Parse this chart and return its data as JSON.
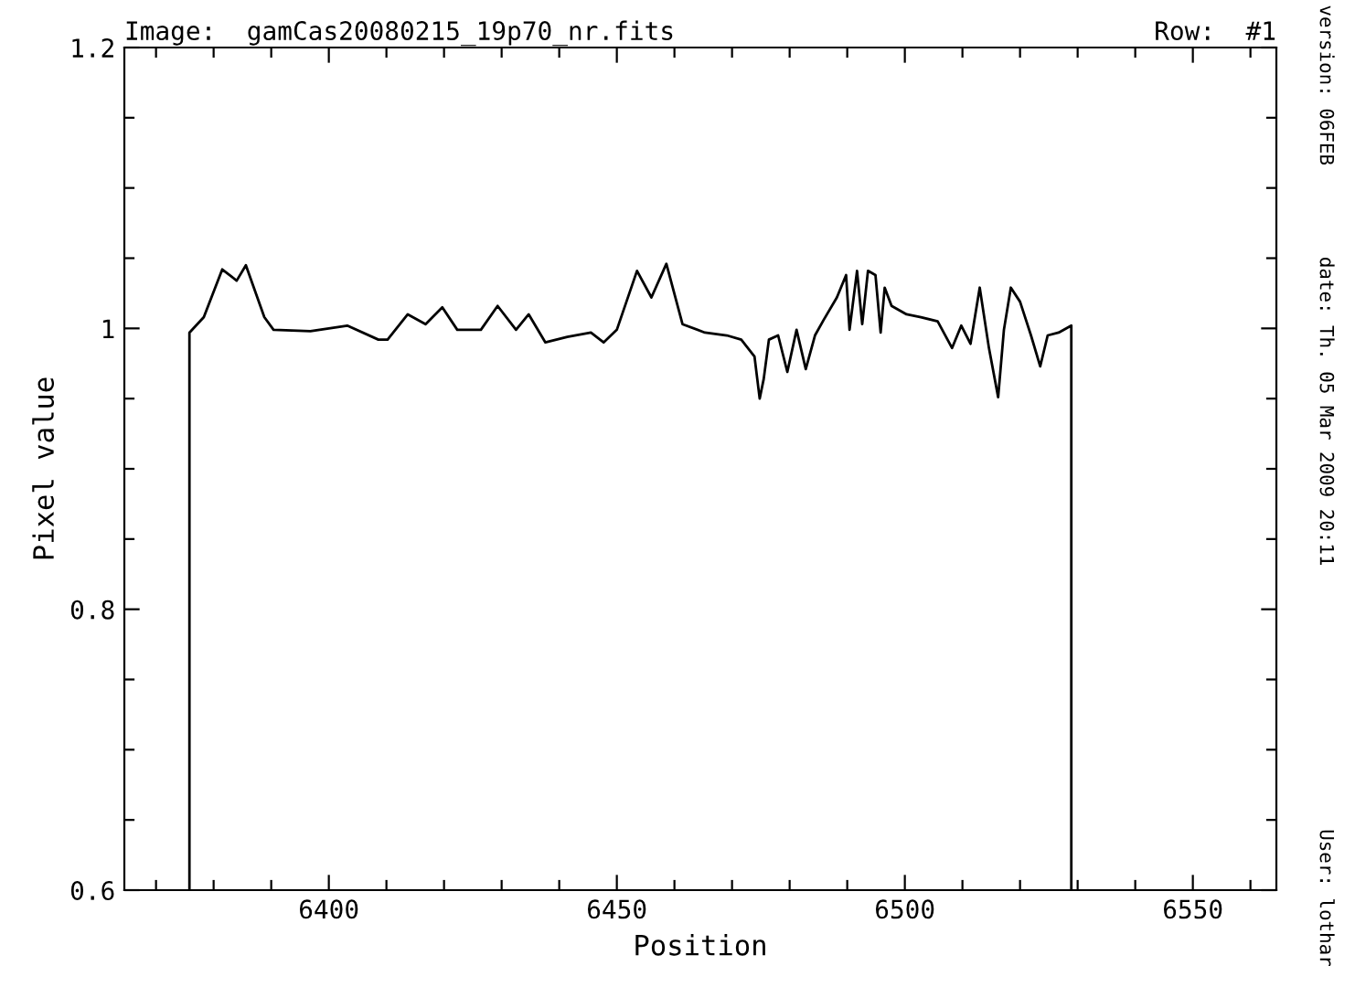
{
  "chart_data": {
    "type": "line",
    "title": "Image:  gamCas20080215_19p70_nr.fits",
    "subtitle": "Row:  #1",
    "xlabel": "Position",
    "ylabel": "Pixel value",
    "annotations": [
      "version: 06FEB",
      "date: Th. 05 Mar 2009 20:11",
      "User: lothar"
    ],
    "x": [
      6375.8,
      6375.8,
      6378.3,
      6381.5,
      6384.0,
      6385.6,
      6388.8,
      6390.4,
      6396.8,
      6403.2,
      6408.6,
      6410.2,
      6413.7,
      6416.8,
      6419.7,
      6422.3,
      6426.4,
      6429.3,
      6432.5,
      6434.7,
      6437.6,
      6441.4,
      6445.5,
      6447.7,
      6450.0,
      6453.5,
      6456.0,
      6458.6,
      6461.4,
      6465.3,
      6469.1,
      6471.6,
      6473.9,
      6474.8,
      6475.5,
      6476.4,
      6478.0,
      6479.6,
      6481.2,
      6482.8,
      6484.4,
      6485.9,
      6488.2,
      6489.8,
      6490.4,
      6491.7,
      6492.6,
      6493.6,
      6494.9,
      6495.8,
      6496.5,
      6497.7,
      6500.3,
      6502.8,
      6505.7,
      6508.2,
      6509.8,
      6511.4,
      6513.0,
      6514.6,
      6516.2,
      6517.2,
      6518.4,
      6520.0,
      6521.9,
      6523.5,
      6524.8,
      6526.7,
      6528.9,
      6528.9
    ],
    "series": [
      {
        "color": "#000000",
        "values": [
          0.6,
          0.997,
          1.008,
          1.042,
          1.034,
          1.045,
          1.008,
          0.999,
          0.998,
          1.002,
          0.992,
          0.992,
          1.01,
          1.003,
          1.015,
          0.999,
          0.999,
          1.016,
          0.999,
          1.01,
          0.99,
          0.994,
          0.997,
          0.99,
          0.999,
          1.041,
          1.022,
          1.046,
          1.003,
          0.997,
          0.995,
          0.992,
          0.98,
          0.95,
          0.964,
          0.992,
          0.995,
          0.969,
          0.999,
          0.971,
          0.995,
          1.006,
          1.022,
          1.038,
          0.999,
          1.041,
          1.003,
          1.041,
          1.038,
          0.997,
          1.029,
          1.016,
          1.01,
          1.008,
          1.005,
          0.986,
          1.002,
          0.989,
          1.029,
          0.986,
          0.951,
          0.999,
          1.029,
          1.019,
          0.995,
          0.973,
          0.995,
          0.997,
          1.002,
          0.6
        ]
      }
    ],
    "xlim": [
      6364.5,
      6564.5
    ],
    "xticks": [
      {
        "value": 6370,
        "label": null
      },
      {
        "value": 6380,
        "label": null
      },
      {
        "value": 6390,
        "label": null
      },
      6400,
      {
        "value": 6410,
        "label": null
      },
      {
        "value": 6420,
        "label": null
      },
      {
        "value": 6430,
        "label": null
      },
      {
        "value": 6440,
        "label": null
      },
      6450,
      {
        "value": 6460,
        "label": null
      },
      {
        "value": 6470,
        "label": null
      },
      {
        "value": 6480,
        "label": null
      },
      {
        "value": 6490,
        "label": null
      },
      6500,
      {
        "value": 6510,
        "label": null
      },
      {
        "value": 6520,
        "label": null
      },
      {
        "value": 6530,
        "label": null
      },
      {
        "value": 6540,
        "label": null
      },
      6550,
      {
        "value": 6560,
        "label": null
      }
    ],
    "ylim": [
      0.6,
      1.2
    ],
    "yticks": [
      0.6,
      {
        "value": 0.65,
        "label": null
      },
      {
        "value": 0.7,
        "label": null
      },
      {
        "value": 0.75,
        "label": null
      },
      0.8,
      {
        "value": 0.85,
        "label": null
      },
      {
        "value": 0.9,
        "label": null
      },
      {
        "value": 0.95,
        "label": null
      },
      1,
      {
        "value": 1.05,
        "label": null
      },
      {
        "value": 1.1,
        "label": null
      },
      {
        "value": 1.15,
        "label": null
      },
      1.2
    ],
    "grid": false,
    "marker": "none",
    "line_style": "solid"
  }
}
